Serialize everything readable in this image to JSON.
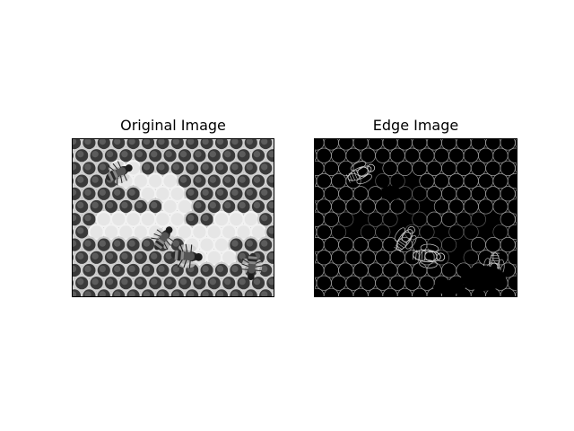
{
  "figure": {
    "panels": [
      {
        "id": "original",
        "title": "Original Image"
      },
      {
        "id": "edges",
        "title": "Edge Image"
      }
    ]
  },
  "colors": {
    "figure_background": "#ffffff",
    "frame": "#000000",
    "edge_background": "#000000",
    "edge_lines": "#bfbfbf"
  },
  "images": {
    "original": {
      "subject": "grayscale photo of honeycomb cells with bees",
      "icon": "honeycomb-photo"
    },
    "edges": {
      "subject": "edge-detection output of the honeycomb photo",
      "icon": "honeycomb-edges"
    }
  }
}
